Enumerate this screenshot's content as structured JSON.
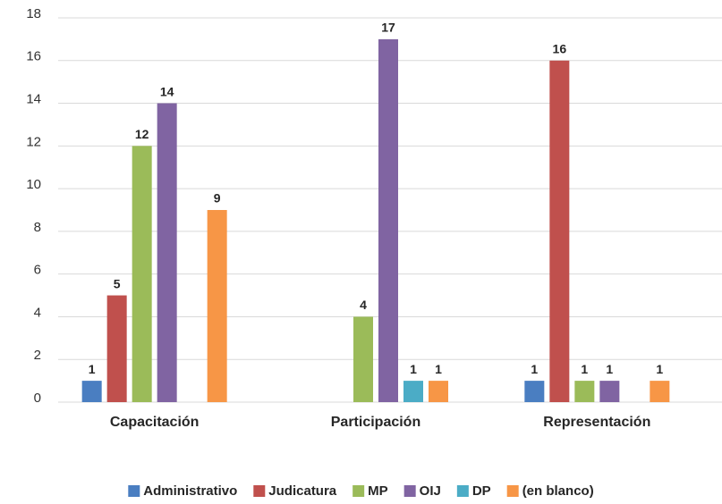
{
  "chart_data": {
    "type": "bar",
    "categories": [
      "Capacitación",
      "Participación",
      "Representación"
    ],
    "series": [
      {
        "name": "Administrativo",
        "color": "#4a7ec1",
        "values": [
          1,
          null,
          1
        ]
      },
      {
        "name": "Judicatura",
        "color": "#c0504d",
        "values": [
          5,
          null,
          16
        ]
      },
      {
        "name": "MP",
        "color": "#9bbb59",
        "values": [
          12,
          4,
          1
        ]
      },
      {
        "name": "OIJ",
        "color": "#8064a2",
        "values": [
          14,
          17,
          1
        ]
      },
      {
        "name": "DP",
        "color": "#4bacc6",
        "values": [
          null,
          1,
          null
        ]
      },
      {
        "name": "(en blanco)",
        "color": "#f79646",
        "values": [
          9,
          1,
          1
        ]
      }
    ],
    "ylim": [
      0,
      18
    ],
    "yticks": [
      0,
      2,
      4,
      6,
      8,
      10,
      12,
      14,
      16,
      18
    ],
    "grid": true,
    "legend": "bottom"
  }
}
